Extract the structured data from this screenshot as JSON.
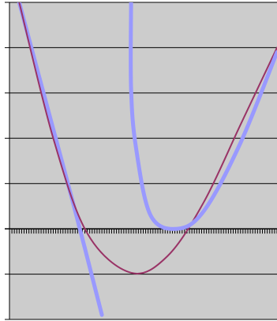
{
  "chart_data": {
    "type": "line",
    "title": "",
    "xlabel": "",
    "ylabel": "",
    "xlim": [
      -3,
      8
    ],
    "ylim": [
      -2,
      5
    ],
    "grid": "horizontal",
    "x_minor_ticks_on_zero_line": true,
    "background": "#cccccc",
    "series": [
      {
        "color": "#9999ff",
        "points": [
          {
            "x": -2.6,
            "y": 5
          },
          {
            "x": -1.5,
            "y": 2.8
          },
          {
            "x": -0.3,
            "y": 0.4
          },
          {
            "x": 0.8,
            "y": -1.9
          }
        ]
      },
      {
        "color": "#993366",
        "points": [
          {
            "x": -2.6,
            "y": 5
          },
          {
            "x": -1.2,
            "y": 2.0
          },
          {
            "x": 0.2,
            "y": -0.1
          },
          {
            "x": 2.0,
            "y": -0.97
          },
          {
            "x": 3.5,
            "y": -0.6
          },
          {
            "x": 5.0,
            "y": 0.6
          },
          {
            "x": 6.5,
            "y": 2.3
          },
          {
            "x": 8.0,
            "y": 4.0
          }
        ]
      },
      {
        "color": "#9999ff",
        "points": [
          {
            "x": 2.0,
            "y": 5
          },
          {
            "x": 2.0,
            "y": 3.1
          },
          {
            "x": 2.2,
            "y": 1.8
          },
          {
            "x": 2.8,
            "y": 0.3
          },
          {
            "x": 3.9,
            "y": 0.0
          },
          {
            "x": 5.0,
            "y": 0.4
          },
          {
            "x": 6.5,
            "y": 1.9
          },
          {
            "x": 8.0,
            "y": 3.9
          }
        ]
      }
    ]
  }
}
